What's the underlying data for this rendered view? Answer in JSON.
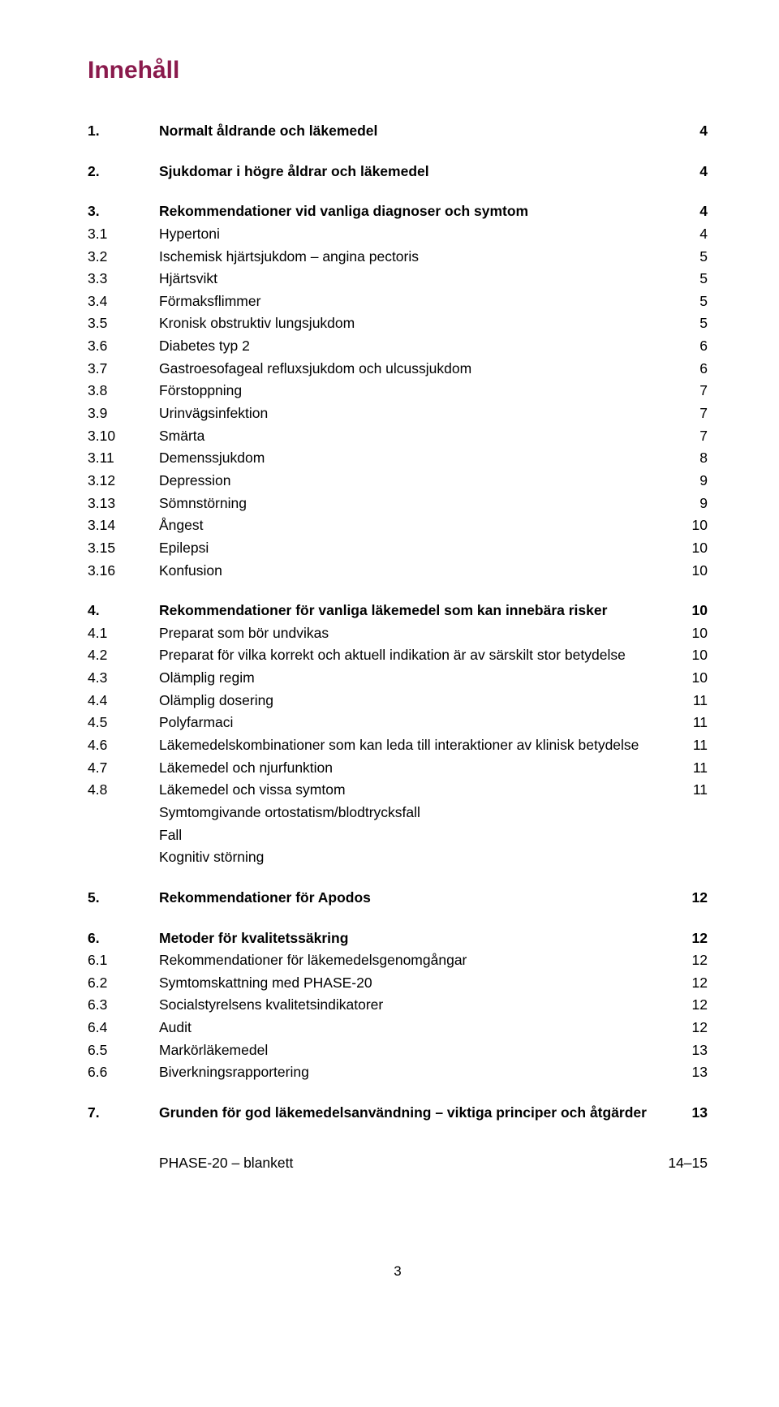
{
  "title": "Innehåll",
  "colors": {
    "title": "#8a1a4c",
    "text": "#000000",
    "background": "#ffffff"
  },
  "sections": [
    {
      "entries": [
        {
          "num": "1.",
          "label": "Normalt åldrande och läkemedel",
          "page": "4",
          "bold": true
        }
      ]
    },
    {
      "entries": [
        {
          "num": "2.",
          "label": "Sjukdomar i högre åldrar och läkemedel",
          "page": "4",
          "bold": true
        }
      ]
    },
    {
      "entries": [
        {
          "num": "3.",
          "label": "Rekommendationer vid vanliga diagnoser och symtom",
          "page": "4",
          "bold": true
        },
        {
          "num": "3.1",
          "label": "Hypertoni",
          "page": "4"
        },
        {
          "num": "3.2",
          "label": "Ischemisk hjärtsjukdom – angina pectoris",
          "page": "5"
        },
        {
          "num": "3.3",
          "label": "Hjärtsvikt",
          "page": "5"
        },
        {
          "num": "3.4",
          "label": "Förmaksflimmer",
          "page": "5"
        },
        {
          "num": "3.5",
          "label": "Kronisk obstruktiv lungsjukdom",
          "page": "5"
        },
        {
          "num": "3.6",
          "label": "Diabetes typ 2",
          "page": "6"
        },
        {
          "num": "3.7",
          "label": "Gastroesofageal refluxsjukdom och ulcussjukdom",
          "page": "6"
        },
        {
          "num": "3.8",
          "label": "Förstoppning",
          "page": "7"
        },
        {
          "num": "3.9",
          "label": "Urinvägsinfektion",
          "page": "7"
        },
        {
          "num": "3.10",
          "label": "Smärta",
          "page": "7"
        },
        {
          "num": "3.11",
          "label": "Demenssjukdom",
          "page": "8"
        },
        {
          "num": "3.12",
          "label": "Depression",
          "page": "9"
        },
        {
          "num": "3.13",
          "label": "Sömnstörning",
          "page": "9"
        },
        {
          "num": "3.14",
          "label": "Ångest",
          "page": "10"
        },
        {
          "num": "3.15",
          "label": "Epilepsi",
          "page": "10"
        },
        {
          "num": "3.16",
          "label": "Konfusion",
          "page": "10"
        }
      ]
    },
    {
      "entries": [
        {
          "num": "4.",
          "label": "Rekommendationer för vanliga läkemedel som kan innebära risker",
          "page": "10",
          "bold": true
        },
        {
          "num": "4.1",
          "label": "Preparat som bör undvikas",
          "page": "10"
        },
        {
          "num": "4.2",
          "label": "Preparat för vilka korrekt och aktuell indikation är av särskilt stor betydelse",
          "page": "10"
        },
        {
          "num": "4.3",
          "label": "Olämplig regim",
          "page": "10"
        },
        {
          "num": "4.4",
          "label": "Olämplig dosering",
          "page": "11"
        },
        {
          "num": "4.5",
          "label": "Polyfarmaci",
          "page": "11"
        },
        {
          "num": "4.6",
          "label": "Läkemedelskombinationer som kan leda till interaktioner av klinisk betydelse",
          "page": "11"
        },
        {
          "num": "4.7",
          "label": "Läkemedel och njurfunktion",
          "page": "11"
        },
        {
          "num": "4.8",
          "label": "Läkemedel och vissa symtom",
          "page": "11"
        }
      ],
      "subs": [
        "Symtomgivande ortostatism/blodtrycksfall",
        "Fall",
        "Kognitiv störning"
      ]
    },
    {
      "entries": [
        {
          "num": "5.",
          "label": "Rekommendationer för Apodos",
          "page": "12",
          "bold": true
        }
      ]
    },
    {
      "entries": [
        {
          "num": "6.",
          "label": "Metoder för kvalitetssäkring",
          "page": "12",
          "bold": true
        },
        {
          "num": "6.1",
          "label": "Rekommendationer för läkemedelsgenomgångar",
          "page": "12"
        },
        {
          "num": "6.2",
          "label": "Symtomskattning med PHASE-20",
          "page": "12"
        },
        {
          "num": "6.3",
          "label": "Socialstyrelsens kvalitetsindikatorer",
          "page": "12"
        },
        {
          "num": "6.4",
          "label": "Audit",
          "page": "12"
        },
        {
          "num": "6.5",
          "label": "Markörläkemedel",
          "page": "13"
        },
        {
          "num": "6.6",
          "label": "Biverkningsrapportering",
          "page": "13"
        }
      ]
    },
    {
      "entries": [
        {
          "num": "7.",
          "label": "Grunden för god läkemedelsanvändning – viktiga principer och åtgärder",
          "page": "13",
          "bold": true
        }
      ]
    }
  ],
  "appendix": {
    "label": "PHASE-20 – blankett",
    "page": "14–15"
  },
  "pageNumber": "3"
}
